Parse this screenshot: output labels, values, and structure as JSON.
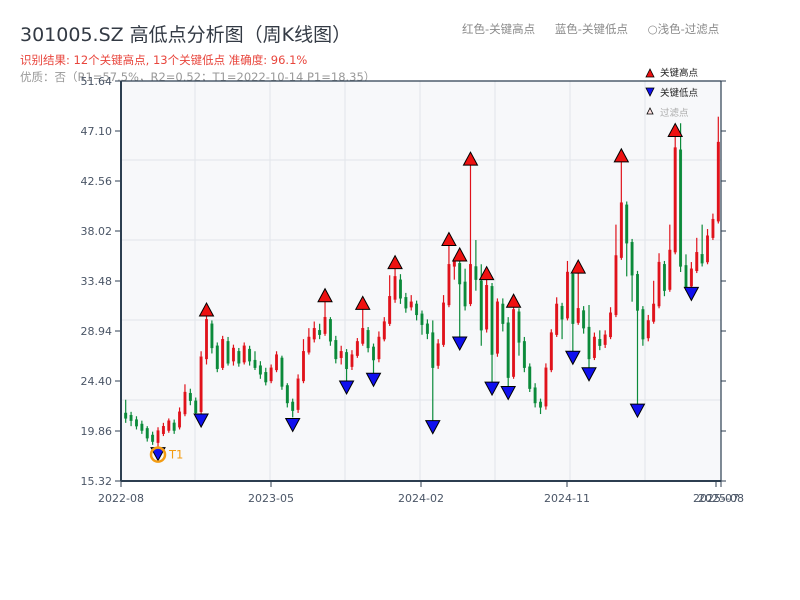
{
  "header": {
    "title": "301005.SZ 高低点分析图（周K线图）",
    "result": "识别结果: 12个关键高点, 13个关键低点   准确度: 96.1%",
    "info": "优质：否（R1=57.5%，R2=0.52；T1=2022-10-14 P1=18.35）"
  },
  "top_legend": {
    "red": "红色-关键高点",
    "blue": "蓝色-关键低点",
    "filtered": "○浅色-过滤点"
  },
  "chart_legend": {
    "high": "关键高点",
    "low": "关键低点",
    "filtered": "过滤点"
  },
  "colors": {
    "up": "#e0121b",
    "down": "#0b8a3a",
    "high_marker": "#ee1111",
    "low_marker": "#1010ee",
    "t1_ring": "#f39c12",
    "axis": "#2c3e50",
    "grid": "#e2e5ea",
    "plot_bg": "#f7f8fa"
  },
  "t1_label": "T1",
  "chart_data": {
    "type": "candlestick",
    "title": "301005.SZ 高低点分析图（周K线图）",
    "xlabel": "",
    "ylabel": "",
    "ylim": [
      15.32,
      51.64
    ],
    "yticks": [
      15.32,
      19.86,
      24.4,
      28.94,
      33.48,
      38.02,
      42.56,
      47.1,
      51.64
    ],
    "xticks": [
      "2022-08",
      "2023-05",
      "2024-02",
      "2024-11",
      "2025-07",
      "2025-08"
    ],
    "grid": true,
    "legend": [
      "关键高点",
      "关键低点",
      "过滤点"
    ],
    "legend_position": "upper right",
    "key_highs": [
      {
        "approx_date": "2022-11",
        "price": 30.3
      },
      {
        "approx_date": "2023-06",
        "price": 31.6
      },
      {
        "approx_date": "2023-08",
        "price": 30.9
      },
      {
        "approx_date": "2023-11",
        "price": 34.6
      },
      {
        "approx_date": "2024-02",
        "price": 36.7
      },
      {
        "approx_date": "2024-03",
        "price": 44.0
      },
      {
        "approx_date": "2024-05",
        "price": 33.6
      },
      {
        "approx_date": "2024-07",
        "price": 31.1
      },
      {
        "approx_date": "2024-11",
        "price": 35.3
      },
      {
        "approx_date": "2024-12",
        "price": 34.2
      },
      {
        "approx_date": "2025-03",
        "price": 44.3
      },
      {
        "approx_date": "2025-06",
        "price": 46.6
      }
    ],
    "key_lows": [
      {
        "approx_date": "2022-10-14",
        "price": 18.35,
        "label": "T1"
      },
      {
        "approx_date": "2023-04",
        "price": 21.0
      },
      {
        "approx_date": "2023-07",
        "price": 24.4
      },
      {
        "approx_date": "2023-09",
        "price": 25.1
      },
      {
        "approx_date": "2024-01",
        "price": 20.8
      },
      {
        "approx_date": "2024-03",
        "price": 28.4
      },
      {
        "approx_date": "2024-05",
        "price": 24.3
      },
      {
        "approx_date": "2024-06",
        "price": 23.9
      },
      {
        "approx_date": "2024-09",
        "price": 21.4
      },
      {
        "approx_date": "2024-11",
        "price": 27.1
      },
      {
        "approx_date": "2025-01",
        "price": 25.6
      },
      {
        "approx_date": "2025-03",
        "price": 22.3
      },
      {
        "approx_date": "2025-06",
        "price": 32.9
      }
    ],
    "candles_ohlc_weekly": [
      [
        21.5,
        21.0,
        22.7,
        20.6
      ],
      [
        21.3,
        20.8,
        21.6,
        20.3
      ],
      [
        20.9,
        20.3,
        21.2,
        20.0
      ],
      [
        20.5,
        19.9,
        20.8,
        19.6
      ],
      [
        20.1,
        19.2,
        20.3,
        18.9
      ],
      [
        19.5,
        18.9,
        19.8,
        18.6
      ],
      [
        18.8,
        19.9,
        20.2,
        18.4
      ],
      [
        19.6,
        20.3,
        20.6,
        19.4
      ],
      [
        19.9,
        20.8,
        21.0,
        19.7
      ],
      [
        20.6,
        19.9,
        20.9,
        19.6
      ],
      [
        20.2,
        21.6,
        22.0,
        20.0
      ],
      [
        21.4,
        23.4,
        24.1,
        21.2
      ],
      [
        23.3,
        22.6,
        23.7,
        22.2
      ],
      [
        22.6,
        21.5,
        22.9,
        21.2
      ],
      [
        21.6,
        26.6,
        27.1,
        21.4
      ],
      [
        26.4,
        30.0,
        30.3,
        25.9
      ],
      [
        29.6,
        27.4,
        29.9,
        26.9
      ],
      [
        27.6,
        25.5,
        27.9,
        25.2
      ],
      [
        25.6,
        28.2,
        28.5,
        25.4
      ],
      [
        28.0,
        26.0,
        28.4,
        25.8
      ],
      [
        26.2,
        27.4,
        27.7,
        25.8
      ],
      [
        27.1,
        26.0,
        27.4,
        25.7
      ],
      [
        26.1,
        27.6,
        27.9,
        25.9
      ],
      [
        27.3,
        26.2,
        27.6,
        25.8
      ],
      [
        26.3,
        25.6,
        27.1,
        25.4
      ],
      [
        25.8,
        25.0,
        26.2,
        24.6
      ],
      [
        25.2,
        24.3,
        25.6,
        24.0
      ],
      [
        24.4,
        25.6,
        25.9,
        24.2
      ],
      [
        25.4,
        26.8,
        27.1,
        25.2
      ],
      [
        26.5,
        23.9,
        26.7,
        23.6
      ],
      [
        24.0,
        22.4,
        24.2,
        22.0
      ],
      [
        22.5,
        21.7,
        22.8,
        21.1
      ],
      [
        21.8,
        24.6,
        25.0,
        21.5
      ],
      [
        24.4,
        27.1,
        28.2,
        24.2
      ],
      [
        27.0,
        28.4,
        29.2,
        26.8
      ],
      [
        28.2,
        29.2,
        29.8,
        27.9
      ],
      [
        29.0,
        28.6,
        29.6,
        28.2
      ],
      [
        28.7,
        30.2,
        31.6,
        28.5
      ],
      [
        30.0,
        28.0,
        30.2,
        27.6
      ],
      [
        28.1,
        26.4,
        28.5,
        26.0
      ],
      [
        26.5,
        27.1,
        27.6,
        25.9
      ],
      [
        27.0,
        25.5,
        27.3,
        24.4
      ],
      [
        25.7,
        26.8,
        27.2,
        25.4
      ],
      [
        26.7,
        28.0,
        28.3,
        26.5
      ],
      [
        27.8,
        29.2,
        30.9,
        27.6
      ],
      [
        29.0,
        27.4,
        29.3,
        27.0
      ],
      [
        27.5,
        26.3,
        27.8,
        25.1
      ],
      [
        26.4,
        28.4,
        28.9,
        26.1
      ],
      [
        28.2,
        29.8,
        30.2,
        28.0
      ],
      [
        29.6,
        32.1,
        34.0,
        29.4
      ],
      [
        31.8,
        33.9,
        34.6,
        31.5
      ],
      [
        33.6,
        31.9,
        34.1,
        31.4
      ],
      [
        32.0,
        31.0,
        32.4,
        30.6
      ],
      [
        31.1,
        31.6,
        32.2,
        30.8
      ],
      [
        31.4,
        30.4,
        31.7,
        29.9
      ],
      [
        30.5,
        29.5,
        30.8,
        28.6
      ],
      [
        29.6,
        28.7,
        30.0,
        28.2
      ],
      [
        28.8,
        25.6,
        29.9,
        20.8
      ],
      [
        25.8,
        27.8,
        28.2,
        25.5
      ],
      [
        27.7,
        31.5,
        32.2,
        27.5
      ],
      [
        31.3,
        35.0,
        36.7,
        31.1
      ],
      [
        34.8,
        35.3,
        35.6,
        33.6
      ],
      [
        35.1,
        33.2,
        35.3,
        28.4
      ],
      [
        33.4,
        31.2,
        34.6,
        30.8
      ],
      [
        31.4,
        35.0,
        44.0,
        31.2
      ],
      [
        34.8,
        33.6,
        37.2,
        32.6
      ],
      [
        33.5,
        29.0,
        35.0,
        27.6
      ],
      [
        29.1,
        33.1,
        33.6,
        28.8
      ],
      [
        33.0,
        26.8,
        33.3,
        24.3
      ],
      [
        26.9,
        31.6,
        31.9,
        26.6
      ],
      [
        31.4,
        29.6,
        31.9,
        28.9
      ],
      [
        29.7,
        24.7,
        30.2,
        23.9
      ],
      [
        24.8,
        30.9,
        31.1,
        24.6
      ],
      [
        30.7,
        27.9,
        31.0,
        26.7
      ],
      [
        28.0,
        25.6,
        28.4,
        25.2
      ],
      [
        25.7,
        23.7,
        26.0,
        23.4
      ],
      [
        23.8,
        22.4,
        24.2,
        22.0
      ],
      [
        22.5,
        22.0,
        22.8,
        21.4
      ],
      [
        22.1,
        25.6,
        26.0,
        21.8
      ],
      [
        25.4,
        28.8,
        29.1,
        25.2
      ],
      [
        28.6,
        31.4,
        32.0,
        28.4
      ],
      [
        31.2,
        30.0,
        31.5,
        28.2
      ],
      [
        30.1,
        34.3,
        35.3,
        29.9
      ],
      [
        34.1,
        29.6,
        34.4,
        27.1
      ],
      [
        29.7,
        31.0,
        34.2,
        29.5
      ],
      [
        30.8,
        29.2,
        31.2,
        28.7
      ],
      [
        29.3,
        26.4,
        31.3,
        25.6
      ],
      [
        26.5,
        28.4,
        28.8,
        26.3
      ],
      [
        28.2,
        27.6,
        29.0,
        27.2
      ],
      [
        27.7,
        28.6,
        29.0,
        27.4
      ],
      [
        28.4,
        30.6,
        31.1,
        28.2
      ],
      [
        30.4,
        35.8,
        38.6,
        30.2
      ],
      [
        35.6,
        40.6,
        44.3,
        35.4
      ],
      [
        40.4,
        36.9,
        40.7,
        33.9
      ],
      [
        37.0,
        34.0,
        37.3,
        31.6
      ],
      [
        34.1,
        30.8,
        34.4,
        22.3
      ],
      [
        30.9,
        28.2,
        31.2,
        27.6
      ],
      [
        28.3,
        29.9,
        30.4,
        28.0
      ],
      [
        29.8,
        31.4,
        33.5,
        29.6
      ],
      [
        31.2,
        35.2,
        36.0,
        31.0
      ],
      [
        35.0,
        32.6,
        35.3,
        32.1
      ],
      [
        32.7,
        36.3,
        38.6,
        32.5
      ],
      [
        36.1,
        45.6,
        46.6,
        35.9
      ],
      [
        45.4,
        34.8,
        47.8,
        34.3
      ],
      [
        34.9,
        32.9,
        35.9,
        32.6
      ],
      [
        33.0,
        34.6,
        35.2,
        32.8
      ],
      [
        34.4,
        36.1,
        37.4,
        34.2
      ],
      [
        35.9,
        35.1,
        38.6,
        34.8
      ],
      [
        35.2,
        37.6,
        38.2,
        35.0
      ],
      [
        37.4,
        39.1,
        39.6,
        37.2
      ],
      [
        38.9,
        46.1,
        48.4,
        38.7
      ]
    ]
  }
}
